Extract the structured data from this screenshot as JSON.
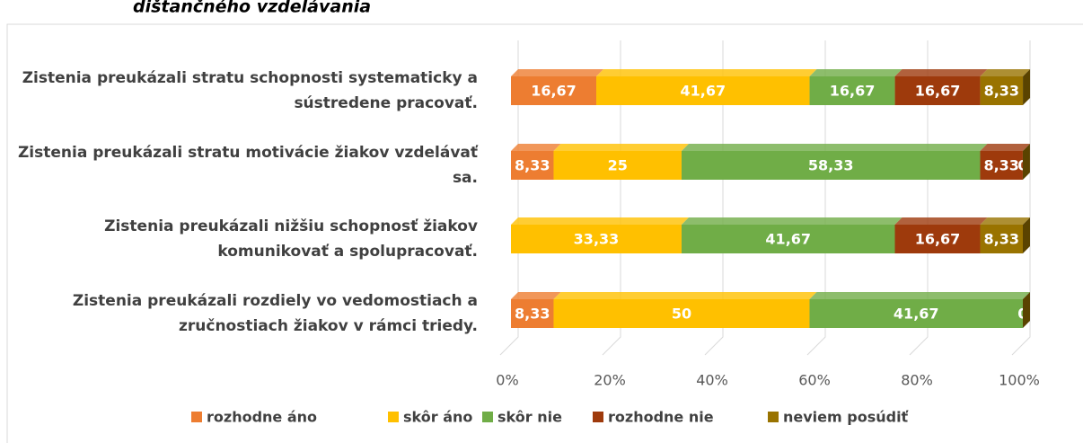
{
  "chart_data": {
    "type": "bar",
    "orientation": "horizontal",
    "stacked": true,
    "title": "dištančného vzdelávania",
    "categories": [
      "Zistenia preukázali stratu schopnosti systematicky a sústredene pracovať.",
      "Zistenia  preukázali stratu motivácie žiakov vzdelávať sa.",
      "Zistenia preukázali nižšiu schopnosť žiakov komunikovať a spolupracovať.",
      "Zistenia  preukázali rozdiely vo vedomostiach a zručnostiach žiakov v rámci triedy."
    ],
    "series": [
      {
        "name": "rozhodne áno",
        "color": "#ed7d31",
        "values": [
          16.67,
          8.33,
          0,
          8.33
        ],
        "value_labels": [
          "16,67",
          "8,33",
          "0",
          "8,33"
        ]
      },
      {
        "name": "skôr áno",
        "color": "#ffc000",
        "values": [
          41.67,
          25,
          33.33,
          50
        ],
        "value_labels": [
          "41,67",
          "25",
          "33,33",
          "50"
        ]
      },
      {
        "name": "skôr nie",
        "color": "#70ad47",
        "values": [
          16.67,
          58.33,
          41.67,
          41.67
        ],
        "value_labels": [
          "16,67",
          "58,33",
          "41,67",
          "41,67"
        ]
      },
      {
        "name": "rozhodne nie",
        "color": "#9e3a0c",
        "values": [
          16.67,
          8.33,
          16.67,
          0
        ],
        "value_labels": [
          "16,67",
          "8,33",
          "16,67",
          "0"
        ]
      },
      {
        "name": "neviem posúdiť",
        "color": "#997300",
        "values": [
          8.33,
          0,
          8.33,
          0
        ],
        "value_labels": [
          "8,33",
          "0",
          "8,33",
          "0"
        ]
      }
    ],
    "xlim": [
      0,
      100
    ],
    "xticks": [
      {
        "value": 0,
        "label": "0%"
      },
      {
        "value": 20,
        "label": "20%"
      },
      {
        "value": 40,
        "label": "40%"
      },
      {
        "value": 60,
        "label": "60%"
      },
      {
        "value": 80,
        "label": "80%"
      },
      {
        "value": 100,
        "label": "100%"
      }
    ],
    "grid": true,
    "legend": "bottom"
  }
}
